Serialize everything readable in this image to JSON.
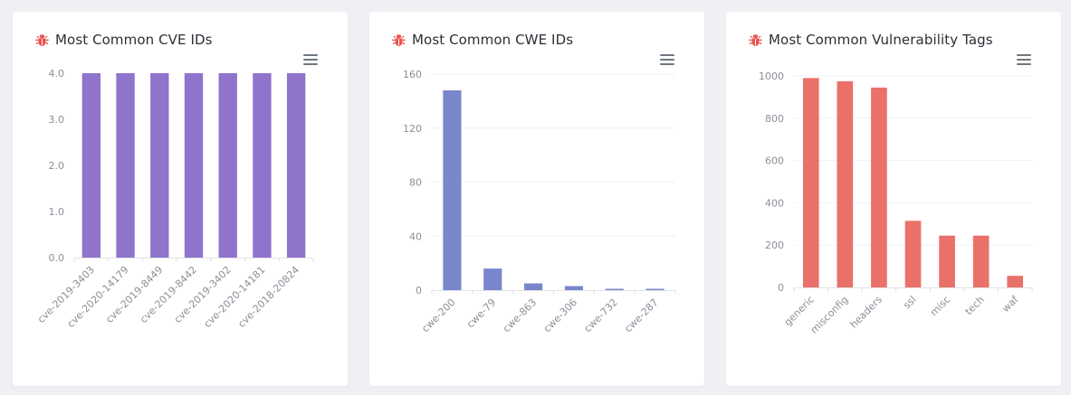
{
  "colors": {
    "page_bg": "#eef0f4",
    "card_bg": "#ffffff",
    "icon_red": "#e9534d"
  },
  "cards": [
    {
      "title": "Most Common CVE IDs",
      "icon": "bug-icon",
      "menu_icon": "hamburger-menu-icon"
    },
    {
      "title": "Most Common CWE IDs",
      "icon": "bug-icon",
      "menu_icon": "hamburger-menu-icon"
    },
    {
      "title": "Most Common Vulnerability Tags",
      "icon": "bug-icon",
      "menu_icon": "hamburger-menu-icon"
    }
  ],
  "chart_data": [
    {
      "type": "bar",
      "title": "Most Common CVE IDs",
      "categories": [
        "cve-2019-3403",
        "cve-2020-14179",
        "cve-2019-8449",
        "cve-2019-8442",
        "cve-2019-3402",
        "cve-2020-14181",
        "cve-2018-20824"
      ],
      "values": [
        4,
        4,
        4,
        4,
        4,
        4,
        4
      ],
      "yticks": [
        "0.0",
        "1.0",
        "2.0",
        "3.0",
        "4.0"
      ],
      "ylim": [
        0,
        4
      ],
      "color": "#9073cb",
      "grid": false
    },
    {
      "type": "bar",
      "title": "Most Common CWE IDs",
      "categories": [
        "cwe-200",
        "cwe-79",
        "cwe-863",
        "cwe-306",
        "cwe-732",
        "cwe-287"
      ],
      "values": [
        148,
        16,
        5,
        3,
        1,
        1
      ],
      "yticks": [
        "0",
        "40",
        "80",
        "120",
        "160"
      ],
      "ylim": [
        0,
        160
      ],
      "color": "#7a86cc",
      "grid": true
    },
    {
      "type": "bar",
      "title": "Most Common Vulnerability Tags",
      "categories": [
        "generic",
        "misconfig",
        "headers",
        "ssl",
        "misc",
        "tech",
        "waf"
      ],
      "values": [
        990,
        975,
        945,
        315,
        245,
        245,
        55
      ],
      "yticks": [
        "0",
        "200",
        "400",
        "600",
        "800",
        "1000"
      ],
      "ylim": [
        0,
        1000
      ],
      "color": "#e9716a",
      "grid": true
    }
  ]
}
